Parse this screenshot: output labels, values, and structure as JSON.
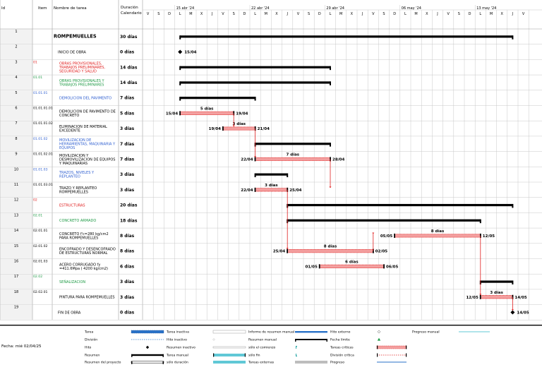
{
  "headers": {
    "id": "Id",
    "item": "Item",
    "name": "Nombre de tarea",
    "duration_l1": "Duración",
    "duration_l2": "Calendario"
  },
  "weeks": [
    "15 abr '24",
    "22 abr '24",
    "29 abr '24",
    "06 may '24",
    "13 may '24"
  ],
  "day_letters": [
    "V",
    "S",
    "D",
    "L",
    "M",
    "X",
    "J",
    "V",
    "S",
    "D",
    "L",
    "M",
    "X",
    "J",
    "V",
    "S",
    "D",
    "L",
    "M",
    "X",
    "J",
    "V",
    "S",
    "D",
    "L",
    "M",
    "X",
    "J",
    "V",
    "S",
    "D",
    "L",
    "M",
    "X",
    "J",
    "V"
  ],
  "tasks": [
    {
      "id": "1",
      "item": "",
      "name": "ROMPEMUELLES",
      "duration": "30 días",
      "name_color": "#000000",
      "name_bold": true,
      "start": 3,
      "end": 34,
      "type": "summary"
    },
    {
      "id": "2",
      "item": "",
      "name": "INICIO DE OBRA",
      "duration": "0 días",
      "name_color": "#000000",
      "name_bold": false,
      "start": 3,
      "end": 3,
      "type": "milestone",
      "label_right": "15/04"
    },
    {
      "id": "3",
      "item": "01",
      "name": "OBRAS PROVISIONALES, TRABAJOS PRELIMINARES, SEGURIDAD Y SALUD",
      "duration": "14 días",
      "name_color": "#e02020",
      "name_bold": false,
      "start": 3,
      "end": 17,
      "type": "summary"
    },
    {
      "id": "4",
      "item": "01.01",
      "name": "OBRAS PROVISIONALES Y TRABAJOS PRELIMINARES",
      "duration": "14 días",
      "name_color": "#1e9a45",
      "name_bold": false,
      "start": 3,
      "end": 17,
      "type": "summary"
    },
    {
      "id": "5",
      "item": "01.01.01",
      "name": "DEMOLICION DEL PAVIMENTO",
      "duration": "7 días",
      "name_color": "#2f5fd0",
      "name_bold": false,
      "start": 3,
      "end": 10,
      "type": "summary"
    },
    {
      "id": "6",
      "item": "01.01.01.01",
      "name": "DEMOLICION DE PAVIMENTO DE CONCRETO",
      "duration": "5 días",
      "name_color": "#000000",
      "name_bold": false,
      "start": 3,
      "end": 8,
      "type": "task",
      "label_left": "15/04",
      "label_right": "19/04",
      "label_top": "5 días"
    },
    {
      "id": "7",
      "item": "01.01.01.02",
      "name": "ELIMINACION DE MATERIAL EXCEDENTE",
      "duration": "3 días",
      "name_color": "#000000",
      "name_bold": false,
      "start": 7,
      "end": 10,
      "type": "task",
      "label_left": "19/04",
      "label_right": "21/04",
      "label_top": "3 días"
    },
    {
      "id": "8",
      "item": "01.01.02",
      "name": "MOVILIZACION DE HERRAMIENTAS, MAQUINARIA Y EQUIPOS",
      "duration": "7 días",
      "name_color": "#2f5fd0",
      "name_bold": false,
      "start": 10,
      "end": 17,
      "type": "summary"
    },
    {
      "id": "9",
      "item": "01.01.02.01",
      "name": "MOVILIZACION Y DESMOVILIZACION DE EQUIPOS Y MAQUINARIAS",
      "duration": "7 días",
      "name_color": "#000000",
      "name_bold": false,
      "start": 10,
      "end": 17,
      "type": "task",
      "label_left": "22/04",
      "label_right": "28/04",
      "label_top": "7 días"
    },
    {
      "id": "10",
      "item": "01.01.03",
      "name": "TRAZOS, NIVELES Y REPLANTEO",
      "duration": "3 días",
      "name_color": "#2f5fd0",
      "name_bold": false,
      "start": 10,
      "end": 13,
      "type": "summary"
    },
    {
      "id": "11",
      "item": "01.01.03.01",
      "name": "TRAZO Y REPLANTEO ROMPEMUELLES",
      "duration": "3 días",
      "name_color": "#000000",
      "name_bold": false,
      "start": 10,
      "end": 13,
      "type": "task",
      "label_left": "22/04",
      "label_right": "25/04",
      "label_top": "3 días"
    },
    {
      "id": "12",
      "item": "02",
      "name": "ESTRUCTURAS",
      "duration": "20 días",
      "name_color": "#e02020",
      "name_bold": false,
      "start": 13,
      "end": 34,
      "type": "summary"
    },
    {
      "id": "13",
      "item": "02.01",
      "name": "CONCRETO ARMADO",
      "duration": "18 días",
      "name_color": "#1e9a45",
      "name_bold": false,
      "start": 13,
      "end": 31,
      "type": "summary"
    },
    {
      "id": "14",
      "item": "02.01.01",
      "name": "CONCRETO f'c=280 kg/cm2 PARA ROMPEMUELLES",
      "duration": "8 días",
      "name_color": "#000000",
      "name_bold": false,
      "start": 23,
      "end": 31,
      "type": "task",
      "label_left": "05/05",
      "label_right": "12/05",
      "label_top": "8 días"
    },
    {
      "id": "15",
      "item": "02.01.02",
      "name": "ENCOFRADO Y DESENCOFRADO DE ESTRUCTURAS NORMAL",
      "duration": "8 días",
      "name_color": "#000000",
      "name_bold": false,
      "start": 13,
      "end": 21,
      "type": "task",
      "label_left": "25/04",
      "label_right": "02/05",
      "label_top": "8 días"
    },
    {
      "id": "16",
      "item": "02.01.03",
      "name": "ACERO CORRUGADO fy =411.6Mpa ( 4200 kg/cm2)",
      "duration": "6 días",
      "name_color": "#000000",
      "name_bold": false,
      "start": 16,
      "end": 22,
      "type": "task",
      "label_left": "01/05",
      "label_right": "06/05",
      "label_top": "6 días"
    },
    {
      "id": "17",
      "item": "02.02",
      "name": "SEÑALIZACION",
      "duration": "3 días",
      "name_color": "#1e9a45",
      "name_bold": false,
      "start": 31,
      "end": 34,
      "type": "summary"
    },
    {
      "id": "18",
      "item": "02.02.01",
      "name": "PINTURA PARA ROMPEMUELLES",
      "duration": "3 días",
      "name_color": "#000000",
      "name_bold": false,
      "start": 31,
      "end": 34,
      "type": "task",
      "label_left": "12/05",
      "label_right": "14/05",
      "label_top": "3 días"
    },
    {
      "id": "19",
      "item": "",
      "name": "FIN DE OBRA",
      "duration": "0 días",
      "name_color": "#000000",
      "name_bold": false,
      "start": 34,
      "end": 34,
      "type": "milestone",
      "label_right": "14/05"
    }
  ],
  "legend": {
    "date_label": "Fecha: mié 02/04/25",
    "col1": [
      "Tarea",
      "División",
      "Hito",
      "Resumen",
      "Resumen del proyecto"
    ],
    "col2": [
      "Tarea inactiva",
      "Hito inactivo",
      "Resumen inactivo",
      "Tarea manual",
      "sólo duración"
    ],
    "col3": [
      "Informe de resumen manual",
      "Resumen manual",
      "sólo el comienzo",
      "sólo fin",
      "Tareas externas"
    ],
    "col4": [
      "Hito externo",
      "Fecha límite",
      "Tareas críticas",
      "División crítica",
      "Progreso"
    ],
    "col5": [
      "Progreso manual"
    ],
    "colors": {
      "critical": "#e02020",
      "critical_fill": "#f3a0a0",
      "task_blue": "#2a72c8",
      "manual_teal": "#60c8d6",
      "green": "#1e9a45",
      "grey": "#bdbdbd"
    }
  }
}
